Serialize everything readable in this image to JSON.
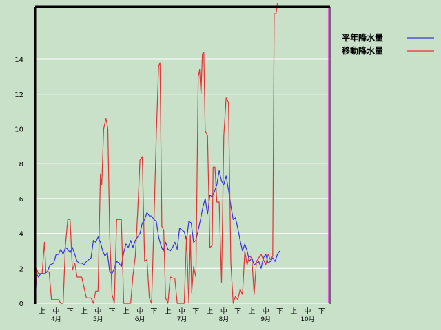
{
  "chart_data": {
    "type": "line",
    "title": "",
    "ylim": [
      0,
      17
    ],
    "yticks": [
      0,
      2,
      4,
      6,
      8,
      10,
      12,
      14
    ],
    "grid": "horizontal",
    "legend_position": "right",
    "colors": {
      "background": "#c9e0c9",
      "grid": "#ffffff",
      "frame": "#000000",
      "marker": "#e060e0"
    },
    "xticks": [
      {
        "label": "上",
        "x": 1.5
      },
      {
        "label": "中",
        "x": 4.5
      },
      {
        "label": "下",
        "x": 7.5
      },
      {
        "label": "上",
        "x": 10.5
      },
      {
        "label": "中",
        "x": 13.5
      },
      {
        "label": "下",
        "x": 16.5
      },
      {
        "label": "上",
        "x": 19.5
      },
      {
        "label": "中",
        "x": 22.5
      },
      {
        "label": "下",
        "x": 25.5
      },
      {
        "label": "上",
        "x": 28.5
      },
      {
        "label": "中",
        "x": 31.5
      },
      {
        "label": "下",
        "x": 34.5
      },
      {
        "label": "上",
        "x": 37.5
      },
      {
        "label": "中",
        "x": 40.5
      },
      {
        "label": "下",
        "x": 43.5
      },
      {
        "label": "上",
        "x": 46.5
      },
      {
        "label": "中",
        "x": 49.5
      },
      {
        "label": "下",
        "x": 52.5
      },
      {
        "label": "上",
        "x": 55.5
      },
      {
        "label": "中",
        "x": 58.5
      },
      {
        "label": "下",
        "x": 61.5
      }
    ],
    "month_labels": [
      {
        "label": "4月",
        "x": 4.5
      },
      {
        "label": "5月",
        "x": 13.5
      },
      {
        "label": "6月",
        "x": 22.5
      },
      {
        "label": "7月",
        "x": 31.5
      },
      {
        "label": "8月",
        "x": 40.5
      },
      {
        "label": "9月",
        "x": 49.5
      },
      {
        "label": "10月",
        "x": 58.5
      }
    ],
    "xlim": [
      0,
      63.3
    ],
    "marker_x": 63.0,
    "series": [
      {
        "name": "平年降水量",
        "color": "#3535e0",
        "points": [
          [
            0,
            0
          ],
          [
            0.3,
            1.7
          ],
          [
            0.7,
            1.5
          ],
          [
            1.2,
            1.7
          ],
          [
            2,
            1.7
          ],
          [
            2.6,
            1.8
          ],
          [
            3.2,
            2.2
          ],
          [
            4,
            2.3
          ],
          [
            4.5,
            2.8
          ],
          [
            5,
            2.8
          ],
          [
            5.5,
            3.1
          ],
          [
            6,
            2.8
          ],
          [
            6.5,
            3.2
          ],
          [
            7,
            3.1
          ],
          [
            7.5,
            2.9
          ],
          [
            8,
            3.2
          ],
          [
            8.5,
            2.8
          ],
          [
            9,
            2.4
          ],
          [
            9.5,
            2.3
          ],
          [
            10,
            2.3
          ],
          [
            10.5,
            2.2
          ],
          [
            11,
            2.4
          ],
          [
            11.5,
            2.5
          ],
          [
            12,
            2.6
          ],
          [
            12.5,
            3.6
          ],
          [
            13,
            3.5
          ],
          [
            13.5,
            3.8
          ],
          [
            14,
            3.5
          ],
          [
            14.5,
            3.0
          ],
          [
            15,
            2.7
          ],
          [
            15.5,
            2.9
          ],
          [
            16,
            1.8
          ],
          [
            16.5,
            1.7
          ],
          [
            17,
            2.0
          ],
          [
            17.5,
            2.4
          ],
          [
            18,
            2.3
          ],
          [
            18.5,
            2.1
          ],
          [
            19,
            2.9
          ],
          [
            19.5,
            3.4
          ],
          [
            20,
            3.2
          ],
          [
            20.5,
            3.6
          ],
          [
            21,
            3.2
          ],
          [
            21.5,
            3.6
          ],
          [
            22,
            3.8
          ],
          [
            22.5,
            4.0
          ],
          [
            23,
            4.6
          ],
          [
            23.5,
            4.8
          ],
          [
            24,
            5.2
          ],
          [
            24.5,
            5.0
          ],
          [
            25,
            5.0
          ],
          [
            25.5,
            4.8
          ],
          [
            26,
            4.7
          ],
          [
            26.5,
            3.8
          ],
          [
            27,
            3.3
          ],
          [
            27.5,
            3.0
          ],
          [
            28,
            3.5
          ],
          [
            28.5,
            3.1
          ],
          [
            29,
            3.0
          ],
          [
            29.5,
            3.2
          ],
          [
            30,
            3.5
          ],
          [
            30.5,
            3.1
          ],
          [
            31,
            4.3
          ],
          [
            31.5,
            4.2
          ],
          [
            32,
            4.1
          ],
          [
            32.5,
            3.6
          ],
          [
            33,
            4.7
          ],
          [
            33.5,
            4.6
          ],
          [
            34,
            3.5
          ],
          [
            34.5,
            3.6
          ],
          [
            35,
            4.2
          ],
          [
            35.5,
            4.8
          ],
          [
            36,
            5.5
          ],
          [
            36.5,
            6.0
          ],
          [
            37,
            5.1
          ],
          [
            37.5,
            6.2
          ],
          [
            38,
            6.1
          ],
          [
            38.5,
            6.4
          ],
          [
            39,
            6.8
          ],
          [
            39.5,
            7.6
          ],
          [
            40,
            7.0
          ],
          [
            40.5,
            6.8
          ],
          [
            41,
            7.3
          ],
          [
            41.5,
            6.5
          ],
          [
            42,
            5.6
          ],
          [
            42.5,
            4.8
          ],
          [
            43,
            4.9
          ],
          [
            43.5,
            4.3
          ],
          [
            44,
            3.6
          ],
          [
            44.5,
            3.0
          ],
          [
            45,
            3.4
          ],
          [
            45.5,
            3.0
          ],
          [
            46,
            2.4
          ],
          [
            46.5,
            2.6
          ],
          [
            47,
            2.2
          ],
          [
            47.5,
            2.3
          ],
          [
            48,
            2.4
          ],
          [
            48.5,
            2.0
          ],
          [
            49,
            2.6
          ],
          [
            49.5,
            2.8
          ],
          [
            50,
            2.3
          ],
          [
            50.5,
            2.4
          ],
          [
            51,
            2.6
          ],
          [
            51.5,
            2.4
          ],
          [
            52,
            2.8
          ],
          [
            52.5,
            3.0
          ]
        ]
      },
      {
        "name": "移動降水量",
        "color": "#e03535",
        "points": [
          [
            0,
            0
          ],
          [
            0.3,
            2.0
          ],
          [
            0.7,
            1.7
          ],
          [
            1.5,
            1.7
          ],
          [
            2,
            3.5
          ],
          [
            2.3,
            1.8
          ],
          [
            3,
            1.8
          ],
          [
            3.5,
            0.2
          ],
          [
            5,
            0.2
          ],
          [
            5.5,
            0
          ],
          [
            6,
            0
          ],
          [
            6.5,
            3.3
          ],
          [
            7,
            4.8
          ],
          [
            7.5,
            4.8
          ],
          [
            8,
            1.9
          ],
          [
            8.5,
            2.3
          ],
          [
            9,
            1.5
          ],
          [
            10,
            1.5
          ],
          [
            11,
            0.3
          ],
          [
            12,
            0.3
          ],
          [
            12.5,
            0
          ],
          [
            13,
            0.7
          ],
          [
            13.5,
            0.7
          ],
          [
            14,
            7.4
          ],
          [
            14.3,
            6.8
          ],
          [
            14.7,
            10.0
          ],
          [
            15.2,
            10.6
          ],
          [
            15.6,
            10.0
          ],
          [
            16,
            3.9
          ],
          [
            16.5,
            0.5
          ],
          [
            17,
            0
          ],
          [
            17.5,
            4.8
          ],
          [
            18.5,
            4.8
          ],
          [
            19,
            0
          ],
          [
            20.5,
            0
          ],
          [
            21,
            1.6
          ],
          [
            21.5,
            2.7
          ],
          [
            22,
            5.2
          ],
          [
            22.5,
            8.2
          ],
          [
            23,
            8.4
          ],
          [
            23.5,
            2.4
          ],
          [
            24,
            2.5
          ],
          [
            24.5,
            0.3
          ],
          [
            25,
            0
          ],
          [
            25.5,
            4.6
          ],
          [
            26,
            9.6
          ],
          [
            26.5,
            13.6
          ],
          [
            26.8,
            13.8
          ],
          [
            27.2,
            4.4
          ],
          [
            27.6,
            4.2
          ],
          [
            28,
            0.3
          ],
          [
            28.5,
            0
          ],
          [
            29,
            1.5
          ],
          [
            30,
            1.4
          ],
          [
            30.5,
            0
          ],
          [
            31.5,
            0
          ],
          [
            32,
            0
          ],
          [
            32.5,
            3.8
          ],
          [
            33,
            0
          ],
          [
            33.3,
            3.9
          ],
          [
            33.6,
            0.6
          ],
          [
            34,
            2.1
          ],
          [
            34.5,
            1.5
          ],
          [
            35,
            13.0
          ],
          [
            35.3,
            13.4
          ],
          [
            35.6,
            12.0
          ],
          [
            35.9,
            14.3
          ],
          [
            36.2,
            14.4
          ],
          [
            36.5,
            9.9
          ],
          [
            37,
            9.6
          ],
          [
            37.5,
            3.2
          ],
          [
            38,
            3.3
          ],
          [
            38.2,
            7.8
          ],
          [
            38.6,
            7.8
          ],
          [
            39,
            5.8
          ],
          [
            39.5,
            5.8
          ],
          [
            40,
            1.2
          ],
          [
            40.5,
            9.6
          ],
          [
            41,
            11.8
          ],
          [
            41.5,
            11.5
          ],
          [
            42,
            2.3
          ],
          [
            42.5,
            0
          ],
          [
            43,
            0.4
          ],
          [
            43.5,
            0.2
          ],
          [
            44,
            0.8
          ],
          [
            44.5,
            0.5
          ],
          [
            45,
            3.0
          ],
          [
            45.5,
            2.2
          ],
          [
            46,
            2.7
          ],
          [
            46.5,
            2.6
          ],
          [
            47,
            0.5
          ],
          [
            47.5,
            2.4
          ],
          [
            48,
            2.6
          ],
          [
            48.5,
            2.8
          ],
          [
            49,
            2.5
          ],
          [
            49.5,
            2.2
          ],
          [
            50,
            2.8
          ],
          [
            50.5,
            2.5
          ],
          [
            51,
            2.7
          ],
          [
            51.3,
            16.6
          ],
          [
            51.7,
            16.6
          ],
          [
            52,
            17.2
          ]
        ]
      }
    ]
  }
}
